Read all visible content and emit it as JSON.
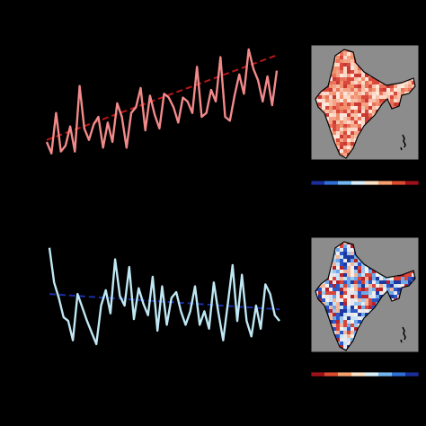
{
  "colors": {
    "background": "#000000",
    "warm_series": "#f28a8a",
    "warm_trend": "#b81818",
    "cool_series": "#bfe8f4",
    "cool_trend": "#1a2fa8",
    "map_panel_bg": "#8c8c8c",
    "map_outline": "#000000"
  },
  "colorbar_palette": {
    "diverging": [
      "#1a2f9c",
      "#2f6fd6",
      "#74b6ef",
      "#d8eef8",
      "#fde1c4",
      "#f6a06e",
      "#dd4a30",
      "#a0121a"
    ]
  },
  "chart_data": [
    {
      "type": "line",
      "series": [
        {
          "values": [
            1.5,
            0.9,
            3.0,
            1.0,
            1.3,
            2.3,
            1.0,
            4.4,
            2.2,
            1.6,
            2.4,
            2.8,
            1.2,
            2.5,
            1.5,
            3.5,
            2.8,
            1.2,
            3.0,
            3.3,
            4.3,
            2.1,
            3.9,
            2.9,
            2.2,
            4.0,
            3.8,
            3.3,
            2.5,
            3.8,
            3.6,
            3.0,
            5.4,
            2.8,
            3.0,
            4.2,
            3.6,
            5.9,
            2.8,
            2.6,
            3.9,
            5.0,
            4.0,
            6.3,
            5.3,
            4.7,
            3.6,
            4.9,
            3.4,
            5.2
          ],
          "style": "solid"
        },
        {
          "values": [
            1.6,
            6.0
          ],
          "style": "dashed-trend"
        }
      ],
      "ylim": [
        0,
        7
      ]
    },
    {
      "type": "line",
      "series": [
        {
          "values": [
            5.8,
            4.0,
            3.2,
            2.2,
            2.0,
            1.0,
            3.4,
            2.7,
            2.0,
            1.4,
            0.8,
            2.8,
            3.6,
            2.4,
            5.2,
            3.3,
            2.8,
            4.8,
            2.1,
            3.7,
            2.9,
            2.3,
            4.3,
            1.5,
            3.8,
            1.8,
            3.2,
            3.5,
            2.5,
            1.8,
            2.5,
            3.8,
            1.8,
            2.5,
            1.6,
            4.0,
            2.4,
            1.0,
            2.9,
            4.9,
            2.0,
            4.4,
            2.0,
            1.2,
            2.8,
            1.6,
            3.9,
            3.4,
            2.3,
            2.0
          ],
          "style": "solid"
        },
        {
          "values": [
            3.4,
            2.6
          ],
          "style": "dashed-trend"
        }
      ],
      "ylim": [
        0,
        7
      ]
    },
    {
      "type": "heatmap",
      "palette": "warm",
      "colorbar": "diverging"
    },
    {
      "type": "heatmap",
      "palette": "mixed",
      "colorbar": "diverging-reversed"
    }
  ]
}
